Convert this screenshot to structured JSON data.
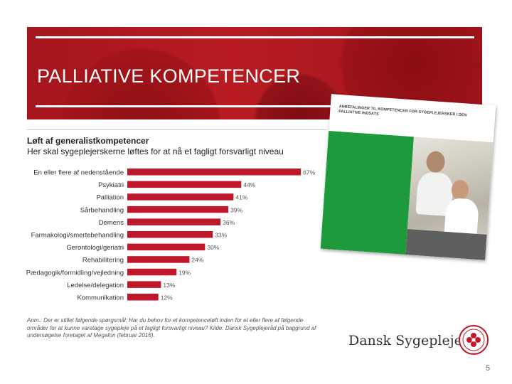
{
  "slide": {
    "title": "PALLIATIVE KOMPETENCER",
    "page_number": "5",
    "logo_text": "Dansk Sygeplejeråd",
    "report_cover_heading": "ANBEFALINGER TIL KOMPETENCER FOR SYGEPLEJERSKER I DEN PALLIATIVE INDSATS"
  },
  "colors": {
    "bar": "#c0182a",
    "banner": "#b0181e",
    "cover_green": "#1d9a3c"
  },
  "chart_data": {
    "type": "bar",
    "orientation": "horizontal",
    "title": "Løft af generalistkompetencer",
    "subtitle": "Her skal sygeplejerskerne løftes for at nå et fagligt forsvarligt niveau",
    "categories": [
      "En eller flere af nedenstående",
      "Psykiatri",
      "Palliation",
      "Sårbehandling",
      "Demens",
      "Farmakologi/smertebehandling",
      "Gerontologi/geriatri",
      "Rehabilitering",
      "Pædagogik/formidling/vejledning",
      "Ledelse/delegation",
      "Kommunikation"
    ],
    "values": [
      67,
      44,
      41,
      39,
      36,
      33,
      30,
      24,
      19,
      13,
      12
    ],
    "value_labels": [
      "67%",
      "44%",
      "41%",
      "39%",
      "36%",
      "33%",
      "30%",
      "24%",
      "19%",
      "13%",
      "12%"
    ],
    "xlim": [
      0,
      70
    ],
    "grid": false,
    "note": "Anm.: Der er stillet følgende spørgsmål: Har du behov for et kompetenceløft inden for et eller flere af følgende områder for at kunne varetage sygepleje på et fagligt forsvarligt niveau? Kilde: Dansk Sygeplejeråd på baggrund af undersøgelse foretaget af Megafon (februar 2016)."
  }
}
